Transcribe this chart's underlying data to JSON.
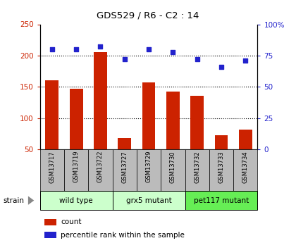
{
  "title": "GDS529 / R6 - C2 : 14",
  "samples": [
    "GSM13717",
    "GSM13719",
    "GSM13722",
    "GSM13727",
    "GSM13729",
    "GSM13730",
    "GSM13732",
    "GSM13733",
    "GSM13734"
  ],
  "counts": [
    160,
    147,
    205,
    68,
    157,
    142,
    136,
    73,
    82
  ],
  "percentiles": [
    80,
    80,
    82,
    72,
    80,
    78,
    72,
    66,
    71
  ],
  "ylim_left": [
    50,
    250
  ],
  "ylim_right": [
    0,
    100
  ],
  "yticks_left": [
    50,
    100,
    150,
    200,
    250
  ],
  "yticks_right": [
    0,
    25,
    50,
    75,
    100
  ],
  "hlines": [
    100,
    150,
    200
  ],
  "bar_color": "#cc2200",
  "dot_color": "#2222cc",
  "bar_bottom": 50,
  "group_labels": [
    "wild type",
    "grx5 mutant",
    "pet117 mutant"
  ],
  "group_colors": [
    "#ccffcc",
    "#ccffcc",
    "#66ee55"
  ],
  "group_ranges": [
    [
      0,
      3
    ],
    [
      3,
      6
    ],
    [
      6,
      9
    ]
  ],
  "tick_label_bg": "#bbbbbb",
  "legend_count": "count",
  "legend_pct": "percentile rank within the sample"
}
